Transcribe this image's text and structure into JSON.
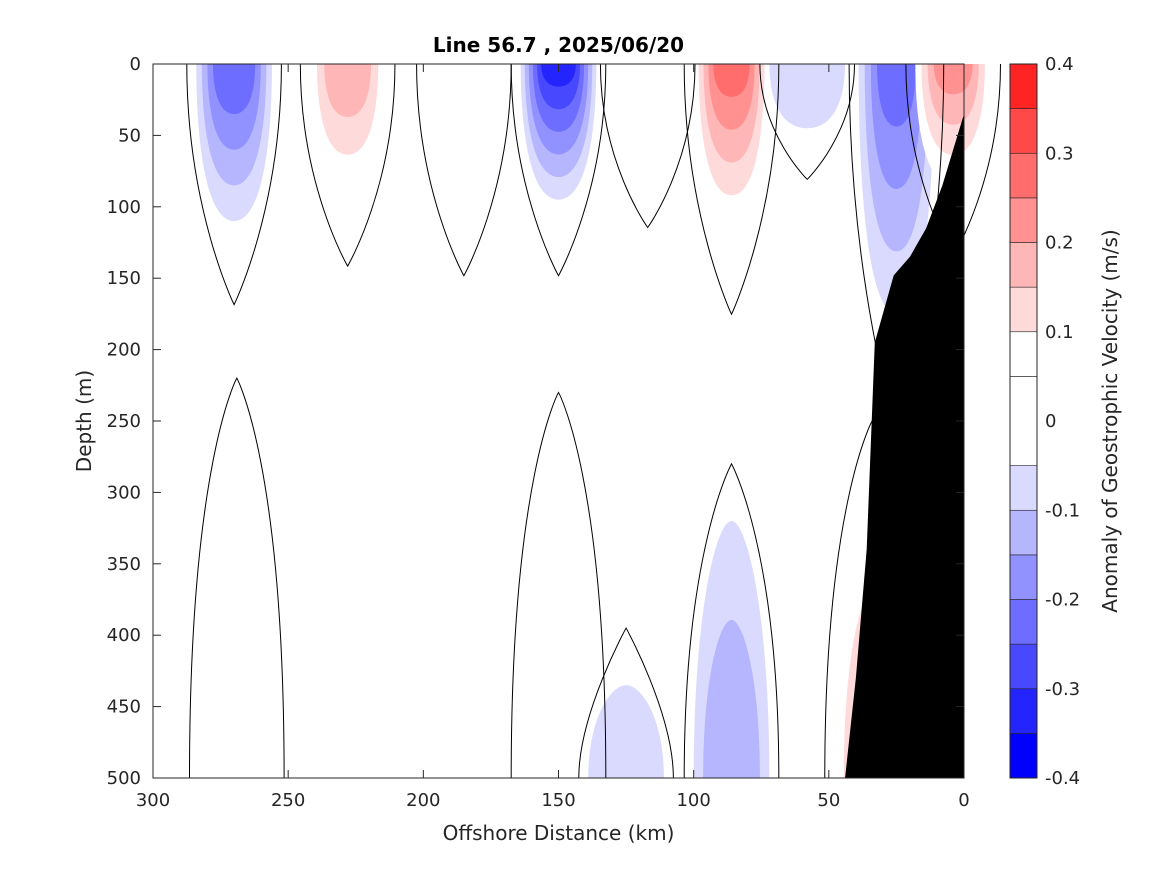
{
  "chart_data": {
    "type": "heatmap",
    "subtype": "filled-contour-section",
    "title": "Line 56.7 , 2025/06/20",
    "xlabel": "Offshore Distance (km)",
    "ylabel": "Depth (m)",
    "x_direction": "reversed",
    "y_direction": "reversed",
    "xlim": [
      0,
      300
    ],
    "ylim": [
      0,
      500
    ],
    "xticks": [
      300,
      250,
      200,
      150,
      100,
      50,
      0
    ],
    "yticks": [
      0,
      50,
      100,
      150,
      200,
      250,
      300,
      350,
      400,
      450,
      500
    ],
    "grid": false,
    "colorbar": {
      "label": "Anomaly of Geostrophic Velocity (m/s)",
      "range": [
        -0.4,
        0.4
      ],
      "ticks": [
        0.4,
        0.3,
        0.2,
        0.1,
        0,
        -0.1,
        -0.2,
        -0.3,
        -0.4
      ],
      "levels": [
        -0.4,
        -0.35,
        -0.3,
        -0.25,
        -0.2,
        -0.15,
        -0.1,
        -0.05,
        0.05,
        0.1,
        0.15,
        0.2,
        0.25,
        0.3,
        0.35,
        0.4
      ],
      "colors": [
        "#0000ff",
        "#2424ff",
        "#4848ff",
        "#6d6dff",
        "#9191ff",
        "#b6b6ff",
        "#dadaff",
        "#ffffff",
        "#ffffff",
        "#ffdada",
        "#ffb6b6",
        "#ff9191",
        "#ff6d6d",
        "#ff4848",
        "#ff2424",
        "#ff0000"
      ],
      "position": "right"
    },
    "bathymetry_color": "#000000",
    "zero_contour_color": "#000000",
    "features": [
      {
        "sign": "negative",
        "x_center_km": 270,
        "depth_range_m": [
          0,
          110
        ],
        "peak_value": -0.22
      },
      {
        "sign": "positive",
        "x_center_km": 228,
        "depth_range_m": [
          0,
          90
        ],
        "peak_value": 0.17
      },
      {
        "sign": "positive",
        "x_center_km": 185,
        "depth_range_m": [
          0,
          95
        ],
        "peak_value": 0.08
      },
      {
        "sign": "negative",
        "x_center_km": 150,
        "depth_range_m": [
          0,
          95
        ],
        "peak_value": -0.3
      },
      {
        "sign": "positive",
        "x_center_km": 117,
        "depth_range_m": [
          0,
          70
        ],
        "peak_value": 0.09
      },
      {
        "sign": "positive",
        "x_center_km": 86,
        "depth_range_m": [
          0,
          115
        ],
        "peak_value": 0.25
      },
      {
        "sign": "negative",
        "x_center_km": 58,
        "depth_range_m": [
          0,
          45
        ],
        "peak_value": -0.09
      },
      {
        "sign": "negative",
        "x_center_km": 25,
        "depth_range_m": [
          0,
          175
        ],
        "peak_value": -0.2
      },
      {
        "sign": "positive",
        "x_center_km": 4,
        "depth_range_m": [
          0,
          85
        ],
        "peak_value": 0.2
      },
      {
        "sign": "positive",
        "x_center_km": 269,
        "depth_range_m": [
          260,
          500
        ],
        "peak_value": 0.08
      },
      {
        "sign": "positive",
        "x_center_km": 150,
        "depth_range_m": [
          270,
          500
        ],
        "peak_value": 0.08
      },
      {
        "sign": "negative",
        "x_center_km": 125,
        "depth_range_m": [
          435,
          500
        ],
        "peak_value": -0.08
      },
      {
        "sign": "negative",
        "x_center_km": 86,
        "depth_range_m": [
          320,
          500
        ],
        "peak_value": -0.13
      },
      {
        "sign": "positive",
        "x_center_km": 34,
        "depth_range_m": [
          290,
          500
        ],
        "peak_value": 0.13
      }
    ]
  }
}
